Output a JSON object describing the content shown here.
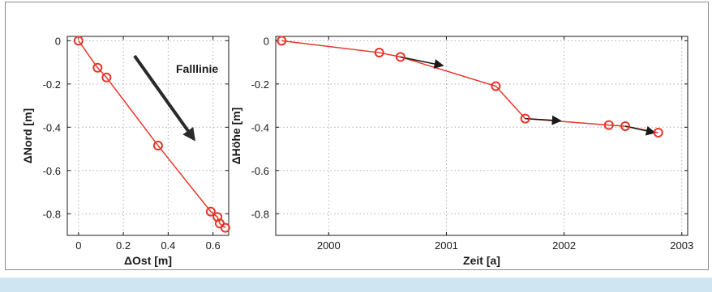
{
  "colors": {
    "series": "#e8352a",
    "arrow": "#1a1a1a",
    "grid": "#b0b0b0"
  },
  "chart_data": [
    {
      "type": "scatter",
      "xlabel": "ΔOst [m]",
      "ylabel": "ΔNord [m]",
      "xlim": [
        -0.05,
        0.67
      ],
      "ylim": [
        -0.9,
        0.02
      ],
      "xticks": [
        0,
        0.2,
        0.4,
        0.6
      ],
      "xtick_labels": [
        "0",
        "0.2",
        "0.4",
        "0.6"
      ],
      "yticks": [
        0,
        -0.2,
        -0.4,
        -0.6,
        -0.8
      ],
      "ytick_labels": [
        "0",
        "-0.2",
        "-0.4",
        "-0.6",
        "-0.8"
      ],
      "grid": true,
      "line": true,
      "x": [
        0,
        0.085,
        0.125,
        0.355,
        0.59,
        0.62,
        0.63,
        0.655
      ],
      "y": [
        0,
        -0.125,
        -0.17,
        -0.485,
        -0.79,
        -0.815,
        -0.845,
        -0.865
      ],
      "annotation": {
        "text": "Falllinie",
        "arrow": {
          "from": [
            0.25,
            -0.07
          ],
          "to": [
            0.515,
            -0.455
          ]
        }
      }
    },
    {
      "type": "scatter",
      "xlabel": "Zeit [a]",
      "ylabel": "ΔHöhe [m]",
      "xlim": [
        1999.55,
        2003.05
      ],
      "ylim": [
        -0.9,
        0.02
      ],
      "xticks": [
        2000,
        2001,
        2002,
        2003
      ],
      "xtick_labels": [
        "2000",
        "2001",
        "2002",
        "2003"
      ],
      "yticks": [
        0,
        -0.2,
        -0.4,
        -0.6,
        -0.8
      ],
      "ytick_labels": [
        "0",
        "-0.2",
        "-0.4",
        "-0.6",
        "-0.8"
      ],
      "grid": true,
      "line": true,
      "x": [
        1999.6,
        2000.43,
        2000.61,
        2001.42,
        2001.67,
        2002.38,
        2002.52,
        2002.8
      ],
      "y": [
        0,
        -0.055,
        -0.075,
        -0.21,
        -0.36,
        -0.39,
        -0.395,
        -0.425
      ],
      "arrows": [
        {
          "from": [
            2000.61,
            -0.075
          ],
          "to": [
            2000.97,
            -0.115
          ]
        },
        {
          "from": [
            2001.67,
            -0.36
          ],
          "to": [
            2001.97,
            -0.37
          ]
        },
        {
          "from": [
            2002.52,
            -0.395
          ],
          "to": [
            2002.77,
            -0.425
          ]
        }
      ]
    }
  ]
}
